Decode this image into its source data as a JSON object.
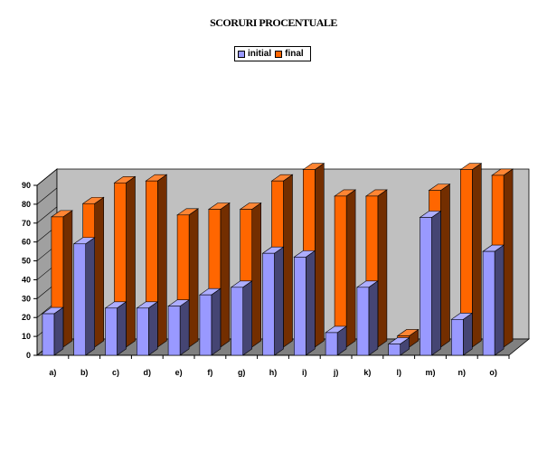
{
  "chart_data": {
    "type": "bar",
    "title": "SCORURI PROCENTUALE",
    "categories": [
      "a)",
      "b)",
      "c)",
      "d)",
      "e)",
      "f)",
      "g)",
      "h)",
      "i)",
      "j)",
      "k)",
      "l)",
      "m)",
      "n)",
      "o)"
    ],
    "series": [
      {
        "name": "initial",
        "color": "#9999ff",
        "values": [
          22,
          59,
          25,
          25,
          26,
          32,
          36,
          54,
          52,
          12,
          36,
          6,
          73,
          19,
          55
        ]
      },
      {
        "name": "final",
        "color": "#ff6600",
        "values": [
          69,
          76,
          87,
          88,
          70,
          73,
          73,
          88,
          94,
          80,
          80,
          6,
          83,
          94,
          91
        ]
      }
    ],
    "yticks": [
      0,
      10,
      20,
      30,
      40,
      50,
      60,
      70,
      80,
      90
    ],
    "ylim": [
      0,
      90
    ],
    "legend_position": "top-center",
    "grid": false
  }
}
